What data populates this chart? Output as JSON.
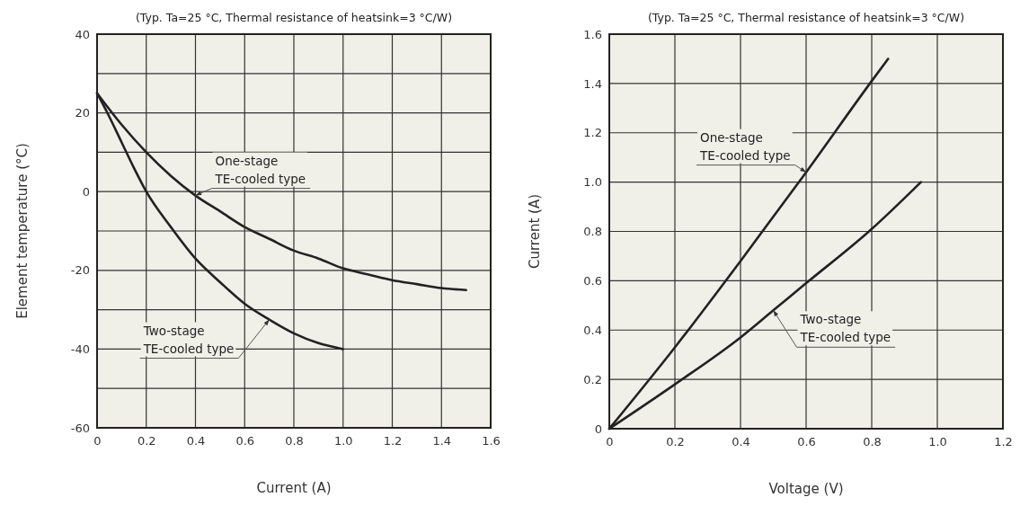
{
  "chart_data": [
    {
      "type": "line",
      "title": "(Typ. Ta=25 °C, Thermal resistance of heatsink=3 °C/W)",
      "xlabel": "Current (A)",
      "ylabel": "Element temperature (°C)",
      "xlim": [
        0,
        1.6
      ],
      "ylim": [
        -60,
        40
      ],
      "xticks": [
        0,
        0.2,
        0.4,
        0.6,
        0.8,
        {
          "value": 1,
          "label": "1.0"
        },
        1.2,
        1.4,
        1.6
      ],
      "yticks": [
        -60,
        {
          "value": -50,
          "label": null
        },
        -40,
        {
          "value": -30,
          "label": null
        },
        -20,
        {
          "value": -10,
          "label": null
        },
        0,
        {
          "value": 10,
          "label": null
        },
        20,
        {
          "value": 30,
          "label": null
        },
        40
      ],
      "grid": true,
      "series": [
        {
          "name": "One-stage TE-cooled type",
          "color": "#222222",
          "x": [
            0,
            0.1,
            0.2,
            0.3,
            0.4,
            0.5,
            0.6,
            0.7,
            0.8,
            0.9,
            1.0,
            1.1,
            1.2,
            1.3,
            1.4,
            1.5
          ],
          "values": [
            25,
            17,
            10,
            4,
            -1,
            -5,
            -9,
            -12,
            -15,
            -17,
            -19.5,
            -21,
            -22.5,
            -23.5,
            -24.5,
            -25
          ]
        },
        {
          "name": "Two-stage TE-cooled type",
          "color": "#222222",
          "x": [
            0,
            0.05,
            0.1,
            0.15,
            0.2,
            0.3,
            0.4,
            0.5,
            0.6,
            0.7,
            0.8,
            0.9,
            1.0
          ],
          "values": [
            25,
            19,
            12.5,
            6,
            0,
            -9,
            -17,
            -23,
            -28.5,
            -32.5,
            -36,
            -38.5,
            -40
          ]
        }
      ]
    },
    {
      "type": "line",
      "title": "(Typ. Ta=25 °C, Thermal resistance of heatsink=3 °C/W)",
      "xlabel": "Voltage (V)",
      "ylabel": "Current (A)",
      "xlim": [
        0,
        1.2
      ],
      "ylim": [
        0,
        1.6
      ],
      "xticks": [
        0,
        0.2,
        0.4,
        0.6,
        0.8,
        {
          "value": 1,
          "label": "1.0"
        },
        1.2
      ],
      "yticks": [
        0,
        0.2,
        0.4,
        0.6,
        0.8,
        {
          "value": 1,
          "label": "1.0"
        },
        1.2,
        1.4,
        1.6
      ],
      "grid": true,
      "series": [
        {
          "name": "One-stage TE-cooled type",
          "color": "#222222",
          "x": [
            0,
            0.2,
            0.4,
            0.6,
            0.8,
            0.85
          ],
          "values": [
            0,
            0.33,
            0.68,
            1.04,
            1.41,
            1.5
          ]
        },
        {
          "name": "Two-stage TE-cooled type",
          "color": "#222222",
          "x": [
            0,
            0.2,
            0.4,
            0.5,
            0.6,
            0.8,
            0.95
          ],
          "values": [
            0,
            0.18,
            0.37,
            0.48,
            0.59,
            0.81,
            1.0
          ]
        }
      ]
    }
  ]
}
